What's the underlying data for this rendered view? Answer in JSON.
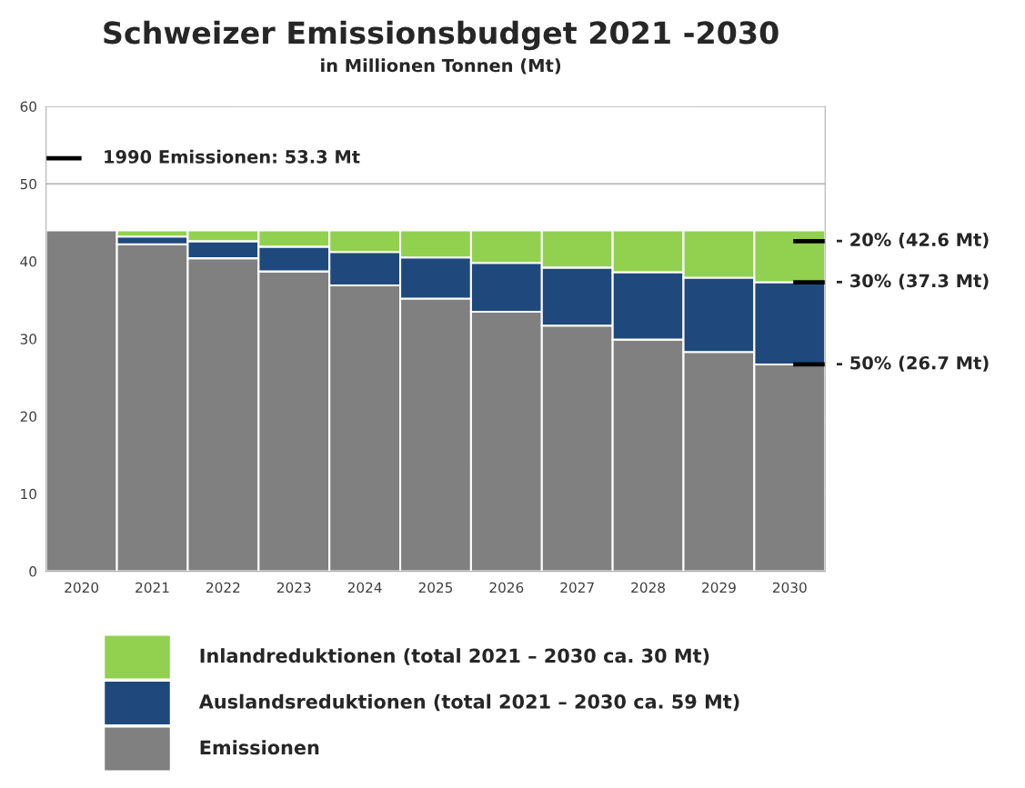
{
  "chart_data": {
    "type": "bar",
    "stacked": true,
    "title": "Schweizer Emissionsbudget 2021 -2030",
    "subtitle": "in Millionen Tonnen (Mt)",
    "categories": [
      "2020",
      "2021",
      "2022",
      "2023",
      "2024",
      "2025",
      "2026",
      "2027",
      "2028",
      "2029",
      "2030"
    ],
    "series": [
      {
        "name": "Emissionen",
        "color": "#808080",
        "values": [
          44,
          42.2,
          40.4,
          38.7,
          36.9,
          35.2,
          33.5,
          31.7,
          29.9,
          28.3,
          26.7
        ]
      },
      {
        "name": "Auslandsreduktionen (total 2021 – 2030 ca. 59 Mt)",
        "color": "#1f497d",
        "values": [
          null,
          1.0,
          2.2,
          3.2,
          4.3,
          5.3,
          6.3,
          7.5,
          8.7,
          9.6,
          10.6
        ]
      },
      {
        "name": "Inlandreduktionen (total 2021 – 2030 ca. 30 Mt)",
        "color": "#92d050",
        "values": [
          null,
          0.8,
          1.4,
          2.1,
          2.8,
          3.5,
          4.2,
          4.8,
          5.4,
          6.1,
          6.7
        ]
      }
    ],
    "ylim": [
      0,
      60
    ],
    "yticks": [
      0,
      10,
      20,
      30,
      40,
      50,
      60
    ],
    "grid": "y",
    "legend": "bottom",
    "ref_lines": [
      {
        "axis": "y",
        "value": 53.3,
        "label": "1990 Emissionen: 53.3 Mt",
        "color": "#000000"
      },
      {
        "axis": "y",
        "value": 42.6,
        "label": "- 20% (42.6 Mt)",
        "color": "#000000"
      },
      {
        "axis": "y",
        "value": 37.3,
        "label": "- 30% (37.3 Mt)",
        "color": "#000000"
      },
      {
        "axis": "y",
        "value": 26.7,
        "label": "- 50% (26.7 Mt)",
        "color": "#000000"
      }
    ]
  }
}
